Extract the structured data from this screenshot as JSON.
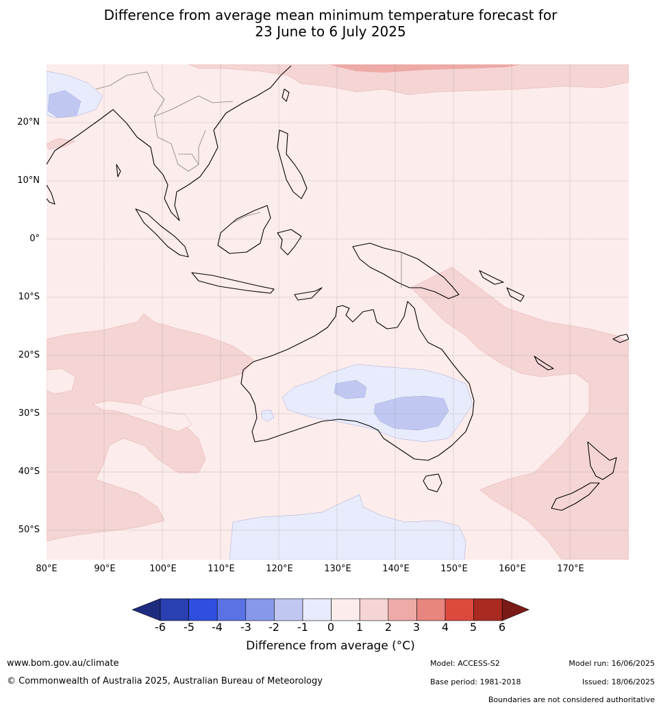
{
  "title": {
    "line1": "Difference from average mean minimum temperature forecast for",
    "line2": "23 June to 6 July 2025"
  },
  "axes": {
    "lat_labels": [
      "20°N",
      "10°N",
      "0°",
      "10°S",
      "20°S",
      "30°S",
      "40°S",
      "50°S"
    ],
    "lon_labels": [
      "80°E",
      "90°E",
      "100°E",
      "110°E",
      "120°E",
      "130°E",
      "140°E",
      "150°E",
      "160°E",
      "170°E"
    ]
  },
  "colorbar": {
    "title": "Difference from average (°C)",
    "ticks": [
      "-6",
      "-5",
      "-4",
      "-3",
      "-2",
      "-1",
      "0",
      "1",
      "2",
      "3",
      "4",
      "5",
      "6"
    ],
    "colors": [
      "#1e2c80",
      "#2a3fb0",
      "#2f4fe0",
      "#5a72e4",
      "#8798ea",
      "#c0c8f2",
      "#e8ebfb",
      "#fceceb",
      "#f5d4d4",
      "#edaaa6",
      "#e8857f",
      "#dc4a3e",
      "#a82a20",
      "#7a1a16"
    ]
  },
  "footer": {
    "website": "www.bom.gov.au/climate",
    "copyright": "© Commonwealth of Australia 2025, Australian Bureau of Meteorology",
    "model": "Model: ACCESS-S2",
    "base_period": "Base period: 1981-2018",
    "model_run": "Model run: 16/06/2025",
    "issued": "Issued: 18/06/2025",
    "disclaimer": "Boundaries are not considered authoritative"
  }
}
